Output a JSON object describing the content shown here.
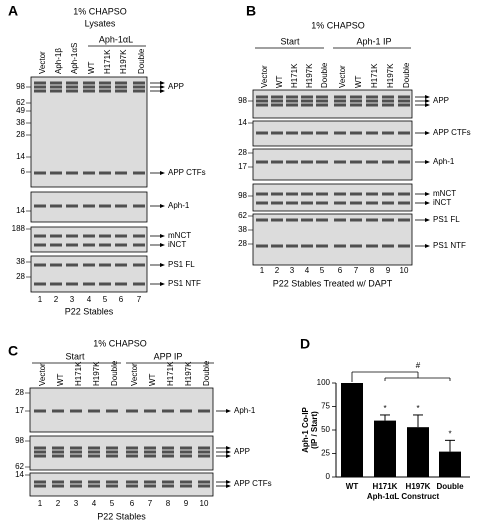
{
  "panels": [
    {
      "letter": "A",
      "header": "1% CHAPSO",
      "subheader": "Lysates",
      "groups": [
        "Aph-1αL"
      ],
      "lanes": [
        "Vector",
        "Aph-1β",
        "Aph-1αS",
        "WT",
        "H171K",
        "H197K",
        "Double"
      ],
      "lane_numbers": [
        "1",
        "2",
        "3",
        "4",
        "5",
        "6",
        "7"
      ],
      "footer": "P22 Stables",
      "blots": [
        {
          "markers": [
            "98",
            "62",
            "49",
            "38",
            "28",
            "14",
            "6"
          ],
          "labels": [
            "APP",
            "APP CTFs"
          ]
        },
        {
          "markers": [
            "14"
          ],
          "labels": [
            "Aph-1"
          ]
        },
        {
          "markers": [
            "188"
          ],
          "labels": [
            "mNCT",
            "iNCT"
          ]
        },
        {
          "markers": [
            "38",
            "28"
          ],
          "labels": [
            "PS1 FL",
            "PS1 NTF"
          ]
        }
      ]
    },
    {
      "letter": "B",
      "header": "1% CHAPSO",
      "groups": [
        "Start",
        "Aph-1 IP"
      ],
      "lanes": [
        "Vector",
        "WT",
        "H171K",
        "H197K",
        "Double",
        "Vector",
        "WT",
        "H171K",
        "H197K",
        "Double"
      ],
      "lane_numbers": [
        "1",
        "2",
        "3",
        "4",
        "5",
        "6",
        "7",
        "8",
        "9",
        "10"
      ],
      "footer": "P22 Stables Treated w/ DAPT",
      "blots": [
        {
          "markers": [
            "98"
          ],
          "labels": [
            "APP"
          ]
        },
        {
          "markers": [
            "14"
          ],
          "labels": [
            "APP CTFs"
          ]
        },
        {
          "markers": [
            "28",
            "17"
          ],
          "labels": [
            "Aph-1"
          ]
        },
        {
          "markers": [
            "98"
          ],
          "labels": [
            "mNCT",
            "iNCT"
          ]
        },
        {
          "markers": [
            "62",
            "38",
            "28"
          ],
          "labels": [
            "PS1 FL",
            "PS1 NTF"
          ]
        }
      ]
    },
    {
      "letter": "C",
      "header": "1% CHAPSO",
      "groups": [
        "Start",
        "APP IP"
      ],
      "lanes": [
        "Vector",
        "WT",
        "H171K",
        "H197K",
        "Double",
        "Vector",
        "WT",
        "H171K",
        "H197K",
        "Double"
      ],
      "lane_numbers": [
        "1",
        "2",
        "3",
        "4",
        "5",
        "6",
        "7",
        "8",
        "9",
        "10"
      ],
      "footer": "P22 Stables",
      "blots": [
        {
          "markers": [
            "28",
            "17"
          ],
          "labels": [
            "Aph-1"
          ]
        },
        {
          "markers": [
            "98",
            "62"
          ],
          "labels": [
            "APP"
          ]
        },
        {
          "markers": [
            "14"
          ],
          "labels": [
            "APP CTFs"
          ]
        }
      ]
    }
  ],
  "chart_data": {
    "type": "bar",
    "letter": "D",
    "categories": [
      "WT",
      "H171K",
      "H197K",
      "Double"
    ],
    "values": [
      100,
      60,
      53,
      27
    ],
    "errors": [
      null,
      6,
      13,
      12
    ],
    "color": "#000000",
    "ylim": [
      0,
      100
    ],
    "yticks": [
      0,
      25,
      50,
      75,
      100
    ],
    "ylabel": [
      "Aph-1 Co-IP",
      "(IP / Start)"
    ],
    "xlabel": "Aph-1αL Construct",
    "annotations": [
      "*",
      "*",
      "*",
      "#"
    ]
  }
}
